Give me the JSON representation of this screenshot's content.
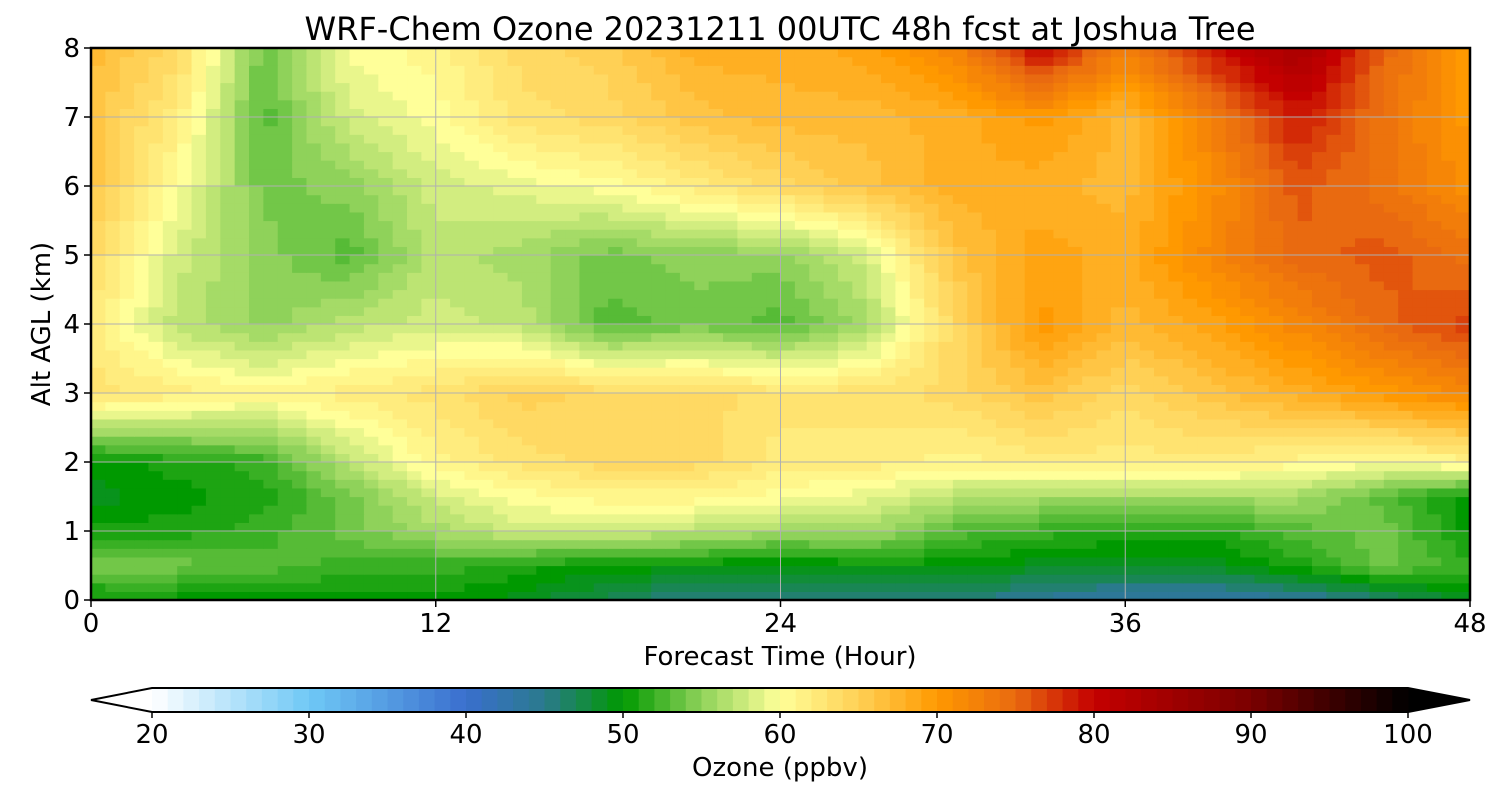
{
  "chart_data": {
    "type": "heatmap",
    "title": "WRF-Chem Ozone  20231211 00UTC 48h fcst at Joshua Tree",
    "xlabel": "Forecast Time (Hour)",
    "ylabel": "Alt AGL (km)",
    "xlim": [
      0,
      48
    ],
    "ylim": [
      0,
      8
    ],
    "x_ticks": [
      0,
      12,
      24,
      36,
      48
    ],
    "y_ticks": [
      0,
      1,
      2,
      3,
      4,
      5,
      6,
      7,
      8
    ],
    "grid": true,
    "x": [
      0,
      3,
      6,
      9,
      12,
      15,
      18,
      21,
      24,
      27,
      30,
      33,
      36,
      39,
      42,
      45,
      48
    ],
    "y": [
      0,
      0.5,
      1,
      1.5,
      2,
      3,
      4,
      5,
      6,
      7,
      8
    ],
    "z": [
      [
        50,
        50,
        50,
        50,
        50,
        49,
        47,
        45,
        45,
        45,
        46,
        44,
        43,
        43,
        44,
        46,
        49
      ],
      [
        54,
        54,
        53,
        52,
        52,
        51,
        50,
        50,
        49,
        50,
        50,
        49,
        49,
        49,
        51,
        54,
        52
      ],
      [
        51,
        51,
        52,
        54,
        56,
        58,
        58,
        57,
        56,
        56,
        53,
        52,
        51,
        51,
        53,
        54,
        50
      ],
      [
        49,
        50,
        51,
        54,
        58,
        60,
        61,
        61,
        60,
        59,
        57,
        56,
        56,
        56,
        56,
        53,
        50
      ],
      [
        50,
        51,
        52,
        57,
        61,
        63,
        64,
        64,
        62,
        62,
        61,
        62,
        62,
        62,
        61,
        60,
        61
      ],
      [
        63,
        62,
        61,
        62,
        63,
        65,
        64,
        64,
        63,
        63,
        64,
        66,
        64,
        66,
        68,
        70,
        72
      ],
      [
        62,
        57,
        55,
        57,
        58,
        57,
        53,
        54,
        53,
        56,
        64,
        70,
        67,
        69,
        72,
        75,
        77
      ],
      [
        64,
        58,
        55,
        53,
        57,
        56,
        54,
        55,
        55,
        58,
        66,
        69,
        68,
        72,
        75,
        76,
        74
      ],
      [
        66,
        60,
        54,
        55,
        58,
        59,
        60,
        62,
        64,
        66,
        68,
        68,
        67,
        71,
        76,
        74,
        71
      ],
      [
        66,
        62,
        53,
        58,
        60,
        63,
        64,
        66,
        67,
        67,
        68,
        70,
        67,
        73,
        79,
        74,
        70
      ],
      [
        67,
        64,
        54,
        60,
        61,
        64,
        65,
        68,
        68,
        69,
        72,
        80,
        73,
        79,
        84,
        75,
        70
      ]
    ],
    "colorbar": {
      "label": "Ozone  (ppbv)",
      "min": 20,
      "max": 100,
      "ticks": [
        20,
        30,
        40,
        50,
        60,
        70,
        80,
        90,
        100
      ],
      "extend": "both",
      "color_stops": [
        {
          "value": 20,
          "color": "#ffffff"
        },
        {
          "value": 30,
          "color": "#6fc8f6"
        },
        {
          "value": 40,
          "color": "#3a6fce"
        },
        {
          "value": 45,
          "color": "#2a7a8c"
        },
        {
          "value": 50,
          "color": "#009900"
        },
        {
          "value": 55,
          "color": "#8fd25a"
        },
        {
          "value": 60,
          "color": "#ffff99"
        },
        {
          "value": 65,
          "color": "#ffd055"
        },
        {
          "value": 70,
          "color": "#ff9900"
        },
        {
          "value": 75,
          "color": "#e96a10"
        },
        {
          "value": 80,
          "color": "#c40000"
        },
        {
          "value": 90,
          "color": "#7a0000"
        },
        {
          "value": 100,
          "color": "#000000"
        }
      ],
      "under_color": "#ffffff",
      "over_color": "#000000"
    }
  }
}
